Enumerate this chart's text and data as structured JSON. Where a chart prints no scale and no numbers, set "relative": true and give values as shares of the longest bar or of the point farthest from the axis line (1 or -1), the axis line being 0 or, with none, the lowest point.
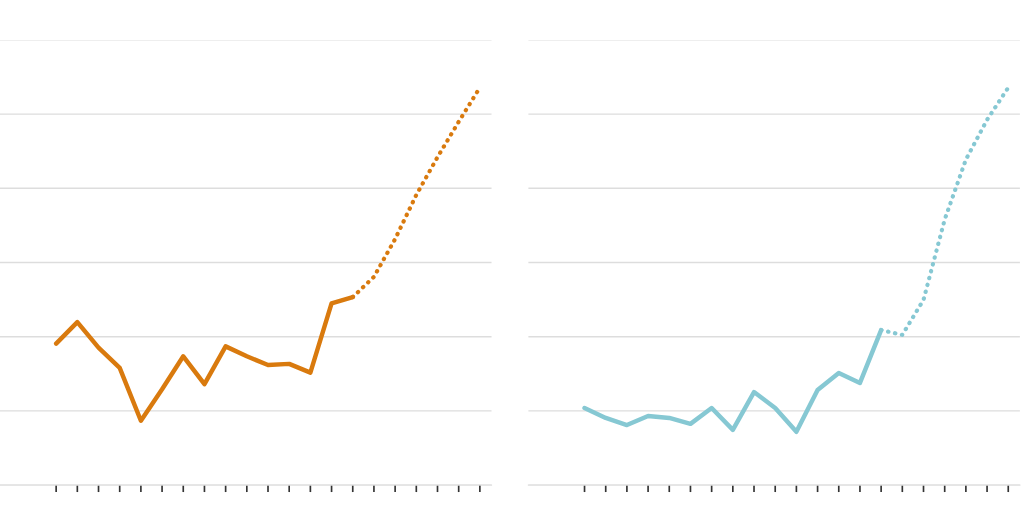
{
  "chart_data": [
    {
      "type": "line",
      "relative": true,
      "categories": [
        null,
        null,
        null,
        null,
        null,
        null,
        null,
        null,
        null,
        null,
        null,
        null,
        null,
        null,
        null,
        null,
        null,
        null,
        null,
        null,
        null
      ],
      "grid": "y",
      "series": [
        {
          "color": "#d97a0e",
          "line_style": "solid",
          "values": [
            0.356,
            0.41,
            0.346,
            0.295,
            0.162,
            0.241,
            0.324,
            0.254,
            0.349,
            0.324,
            0.302,
            0.305,
            0.283,
            0.457,
            0.473,
            null,
            null,
            null,
            null,
            null,
            null
          ]
        },
        {
          "color": "#d97a0e",
          "line_style": "dotted",
          "values": [
            null,
            null,
            null,
            null,
            null,
            null,
            null,
            null,
            null,
            null,
            null,
            null,
            null,
            null,
            0.473,
            0.524,
            0.619,
            0.73,
            0.825,
            0.914,
            1
          ]
        }
      ]
    },
    {
      "type": "line",
      "relative": true,
      "categories": [
        null,
        null,
        null,
        null,
        null,
        null,
        null,
        null,
        null,
        null,
        null,
        null,
        null,
        null,
        null,
        null,
        null,
        null,
        null,
        null,
        null
      ],
      "grid": "y",
      "series": [
        {
          "color": "#86c8d3",
          "line_style": "solid",
          "values": [
            0.194,
            0.169,
            0.151,
            0.174,
            0.169,
            0.154,
            0.194,
            0.139,
            0.234,
            0.194,
            0.134,
            0.239,
            0.282,
            0.257,
            0.39,
            null,
            null,
            null,
            null,
            null,
            null
          ]
        },
        {
          "color": "#86c8d3",
          "line_style": "dotted",
          "values": [
            null,
            null,
            null,
            null,
            null,
            null,
            null,
            null,
            null,
            null,
            null,
            null,
            null,
            null,
            0.39,
            0.378,
            0.466,
            0.668,
            0.819,
            0.919,
            1
          ]
        }
      ]
    }
  ]
}
